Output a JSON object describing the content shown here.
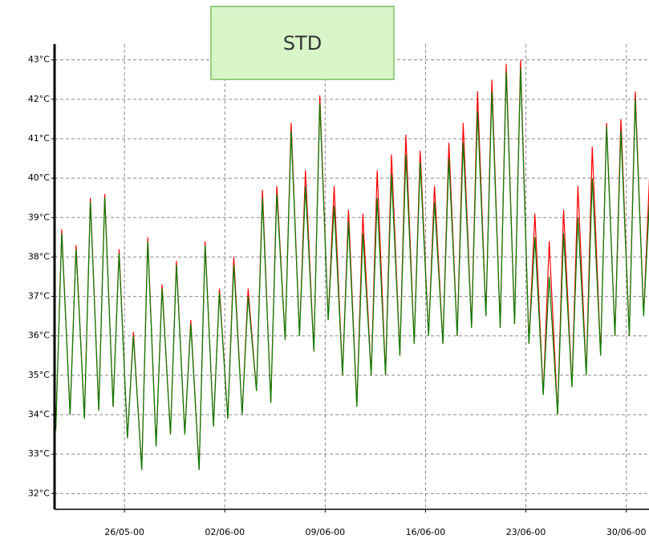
{
  "chart_data": {
    "type": "line",
    "title": "STD",
    "x": [
      "2000-05-21T05:00",
      "2000-05-21T15:00",
      "2000-05-22T05:00",
      "2000-05-22T15:00",
      "2000-05-23T05:00",
      "2000-05-23T15:00",
      "2000-05-24T05:00",
      "2000-05-24T15:00",
      "2000-05-25T05:00",
      "2000-05-25T15:00",
      "2000-05-26T05:00",
      "2000-05-26T15:00",
      "2000-05-27T05:00",
      "2000-05-27T15:00",
      "2000-05-28T05:00",
      "2000-05-28T15:00",
      "2000-05-29T05:00",
      "2000-05-29T15:00",
      "2000-05-30T05:00",
      "2000-05-30T15:00",
      "2000-05-31T05:00",
      "2000-05-31T15:00",
      "2000-06-01T05:00",
      "2000-06-01T15:00",
      "2000-06-02T05:00",
      "2000-06-02T15:00",
      "2000-06-03T05:00",
      "2000-06-03T15:00",
      "2000-06-04T05:00",
      "2000-06-04T15:00",
      "2000-06-05T05:00",
      "2000-06-05T15:00",
      "2000-06-06T05:00",
      "2000-06-06T15:00",
      "2000-06-07T05:00",
      "2000-06-07T15:00",
      "2000-06-08T05:00",
      "2000-06-08T15:00",
      "2000-06-09T05:00",
      "2000-06-09T15:00",
      "2000-06-10T05:00",
      "2000-06-10T15:00",
      "2000-06-11T05:00",
      "2000-06-11T15:00",
      "2000-06-12T05:00",
      "2000-06-12T15:00",
      "2000-06-13T05:00",
      "2000-06-13T15:00",
      "2000-06-14T05:00",
      "2000-06-14T15:00",
      "2000-06-15T05:00",
      "2000-06-15T15:00",
      "2000-06-16T05:00",
      "2000-06-16T15:00",
      "2000-06-17T05:00",
      "2000-06-17T15:00",
      "2000-06-18T05:00",
      "2000-06-18T15:00",
      "2000-06-19T05:00",
      "2000-06-19T15:00",
      "2000-06-20T05:00",
      "2000-06-20T15:00",
      "2000-06-21T05:00",
      "2000-06-21T15:00",
      "2000-06-22T05:00",
      "2000-06-22T15:00",
      "2000-06-23T05:00",
      "2000-06-23T15:00",
      "2000-06-24T05:00",
      "2000-06-24T15:00",
      "2000-06-25T05:00",
      "2000-06-25T15:00",
      "2000-06-26T05:00",
      "2000-06-26T15:00",
      "2000-06-27T05:00",
      "2000-06-27T15:00",
      "2000-06-28T05:00",
      "2000-06-28T15:00",
      "2000-06-29T05:00",
      "2000-06-29T15:00",
      "2000-06-30T05:00",
      "2000-06-30T15:00",
      "2000-07-01T05:00",
      "2000-07-01T15:00"
    ],
    "series": [
      {
        "color": "#ff0000",
        "values": [
          33.6,
          38.7,
          34.0,
          38.3,
          33.9,
          39.5,
          34.1,
          39.6,
          34.2,
          38.2,
          33.4,
          36.1,
          32.6,
          38.5,
          33.2,
          37.3,
          33.5,
          37.9,
          33.5,
          36.4,
          32.6,
          38.4,
          33.7,
          37.2,
          33.9,
          38.0,
          34.0,
          37.2,
          34.6,
          39.7,
          34.3,
          39.8,
          35.9,
          41.4,
          36.0,
          40.2,
          35.6,
          42.1,
          36.4,
          39.8,
          35.0,
          39.2,
          34.2,
          39.1,
          35.0,
          40.2,
          35.0,
          40.6,
          35.5,
          41.1,
          35.8,
          40.7,
          36.0,
          39.8,
          35.8,
          40.9,
          36.0,
          41.4,
          36.2,
          42.2,
          36.5,
          42.5,
          36.2,
          42.9,
          36.3,
          43.0,
          35.8,
          39.1,
          34.5,
          38.4,
          34.0,
          39.2,
          34.7,
          39.8,
          35.0,
          40.8,
          35.5,
          41.4,
          36.0,
          41.5,
          36.0,
          42.2,
          36.5,
          40.1
        ]
      },
      {
        "color": "#008000",
        "values": [
          33.6,
          38.6,
          34.0,
          38.2,
          33.9,
          39.4,
          34.1,
          39.5,
          34.2,
          38.1,
          33.4,
          36.0,
          32.6,
          38.4,
          33.2,
          37.2,
          33.5,
          37.8,
          33.5,
          36.3,
          32.6,
          38.3,
          33.7,
          37.1,
          33.9,
          37.8,
          34.0,
          37.0,
          34.6,
          39.5,
          34.3,
          39.6,
          35.9,
          41.2,
          36.0,
          39.8,
          35.6,
          41.9,
          36.4,
          39.3,
          35.0,
          38.9,
          34.2,
          38.6,
          35.0,
          39.5,
          35.0,
          40.1,
          35.5,
          40.6,
          35.8,
          40.4,
          36.0,
          39.4,
          35.8,
          40.5,
          36.0,
          40.9,
          36.2,
          41.7,
          36.5,
          42.2,
          36.2,
          42.7,
          36.3,
          42.8,
          35.8,
          38.5,
          34.5,
          37.5,
          34.0,
          38.6,
          34.7,
          39.0,
          35.0,
          40.0,
          35.5,
          41.3,
          36.0,
          41.2,
          36.0,
          42.0,
          36.5,
          39.5
        ]
      }
    ],
    "xlim": [
      "2000-05-21T03:00",
      "2000-07-01T14:00"
    ],
    "xticks": [
      {
        "value": "2000-05-26",
        "label": "26/05-00"
      },
      {
        "value": "2000-06-02",
        "label": "02/06-00"
      },
      {
        "value": "2000-06-09",
        "label": "09/06-00"
      },
      {
        "value": "2000-06-16",
        "label": "16/06-00"
      },
      {
        "value": "2000-06-23",
        "label": "23/06-00"
      },
      {
        "value": "2000-06-30",
        "label": "30/06-00"
      }
    ],
    "ylim": [
      31.6,
      43.4
    ],
    "yticks": [
      {
        "value": 32,
        "label": "32°C"
      },
      {
        "value": 33,
        "label": "33°C"
      },
      {
        "value": 34,
        "label": "34°C"
      },
      {
        "value": 35,
        "label": "35°C"
      },
      {
        "value": 36,
        "label": "36°C"
      },
      {
        "value": 37,
        "label": "37°C"
      },
      {
        "value": 38,
        "label": "38°C"
      },
      {
        "value": 39,
        "label": "39°C"
      },
      {
        "value": 40,
        "label": "40°C"
      },
      {
        "value": 41,
        "label": "41°C"
      },
      {
        "value": 42,
        "label": "42°C"
      },
      {
        "value": 43,
        "label": "43°C"
      }
    ],
    "grid": true
  }
}
